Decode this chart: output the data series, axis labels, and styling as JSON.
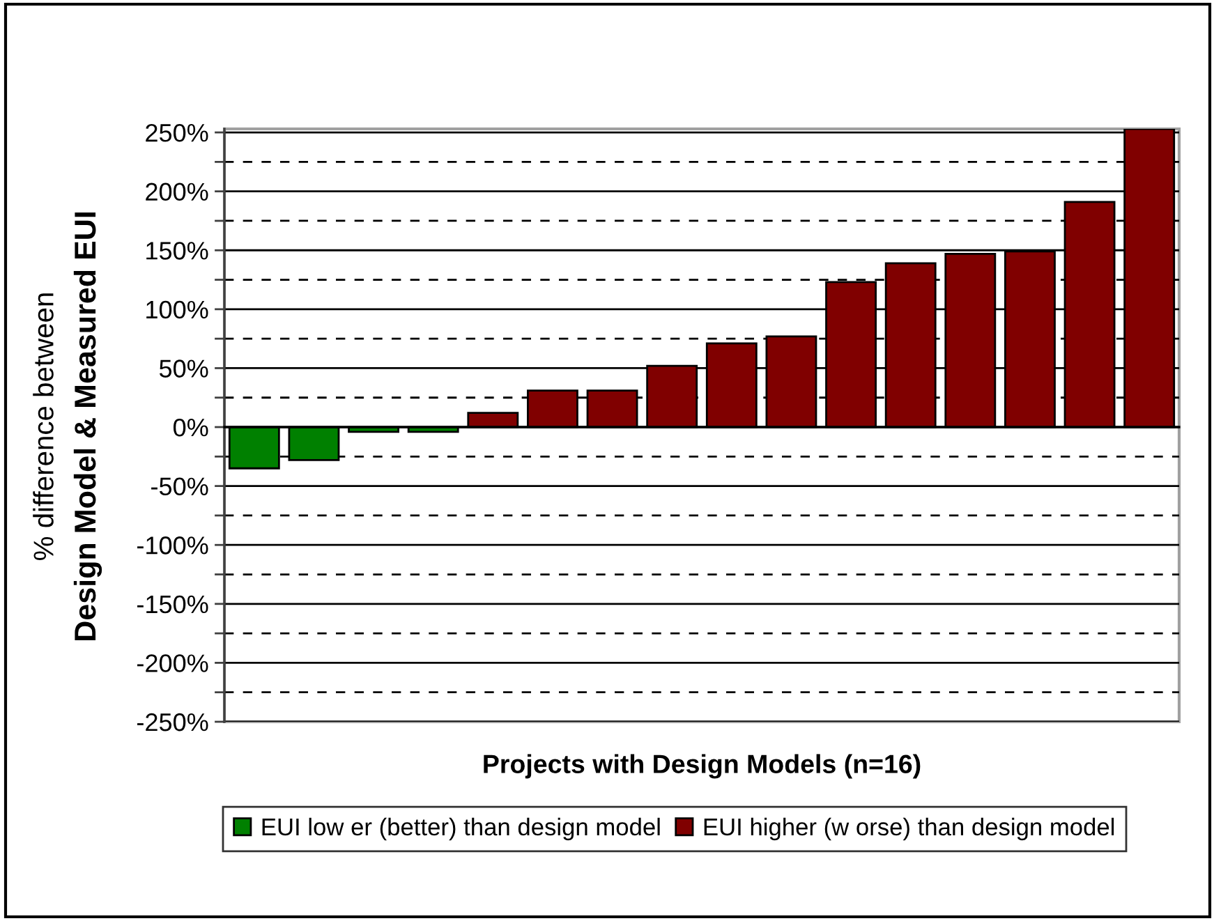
{
  "chart_data": {
    "type": "bar",
    "categories": [
      null,
      null,
      null,
      null,
      null,
      null,
      null,
      null,
      null,
      null,
      null,
      null,
      null,
      null,
      null,
      null
    ],
    "series": [
      {
        "name": "EUI low er (better) than design model",
        "color": "#008000",
        "values": [
          -35,
          -28,
          -4,
          -4,
          null,
          null,
          null,
          null,
          null,
          null,
          null,
          null,
          null,
          null,
          null,
          null
        ]
      },
      {
        "name": "EUI higher (w orse) than design model",
        "color": "#800000",
        "values": [
          null,
          null,
          null,
          null,
          12,
          31,
          31,
          52,
          71,
          77,
          123,
          139,
          147,
          149,
          191,
          253
        ]
      }
    ],
    "ylim": [
      -250,
      253
    ],
    "yticks": [
      {
        "value": -250,
        "label": "-250%"
      },
      {
        "value": -225,
        "label": null
      },
      {
        "value": -200,
        "label": "-200%"
      },
      {
        "value": -175,
        "label": null
      },
      {
        "value": -150,
        "label": "-150%"
      },
      {
        "value": -125,
        "label": null
      },
      {
        "value": -100,
        "label": "-100%"
      },
      {
        "value": -75,
        "label": null
      },
      {
        "value": -50,
        "label": "-50%"
      },
      {
        "value": -25,
        "label": null
      },
      {
        "value": 0,
        "label": "0%"
      },
      {
        "value": 25,
        "label": null
      },
      {
        "value": 50,
        "label": "50%"
      },
      {
        "value": 75,
        "label": null
      },
      {
        "value": 100,
        "label": "100%"
      },
      {
        "value": 125,
        "label": null
      },
      {
        "value": 150,
        "label": "150%"
      },
      {
        "value": 175,
        "label": null
      },
      {
        "value": 200,
        "label": "200%"
      },
      {
        "value": 225,
        "label": null
      },
      {
        "value": 250,
        "label": "250%"
      }
    ],
    "grid": "y",
    "legend": "bottom",
    "xlabel": "Projects with Design Models (n=16)",
    "ylabel": "% difference between\nDesign Model & Measured EUI"
  }
}
